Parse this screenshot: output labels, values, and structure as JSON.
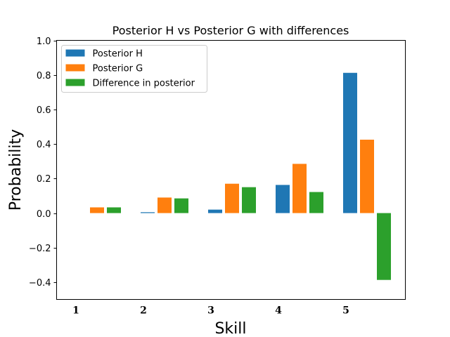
{
  "chart_data": {
    "type": "bar",
    "title": "Posterior H vs Posterior G with differences",
    "xlabel": "Skill",
    "ylabel": "Probability",
    "ylim": [
      -0.5,
      1.0
    ],
    "yticks": [
      "−0.4",
      "−0.2",
      "0.0",
      "0.2",
      "0.4",
      "0.6",
      "0.8",
      "1.0"
    ],
    "ytick_values": [
      -0.4,
      -0.2,
      0.0,
      0.2,
      0.4,
      0.6,
      0.8,
      1.0
    ],
    "categories": [
      "1",
      "2",
      "3",
      "4",
      "5"
    ],
    "grid": false,
    "legend_position": "top-left",
    "series": [
      {
        "name": "Posterior H",
        "color": "#1f77b4",
        "values": [
          0.0,
          0.005,
          0.02,
          0.163,
          0.812
        ]
      },
      {
        "name": "Posterior G",
        "color": "#ff7f0e",
        "values": [
          0.033,
          0.09,
          0.17,
          0.285,
          0.425
        ]
      },
      {
        "name": "Difference in posterior",
        "color": "#2ca02c",
        "values": [
          0.033,
          0.085,
          0.15,
          0.122,
          -0.387
        ]
      }
    ]
  }
}
